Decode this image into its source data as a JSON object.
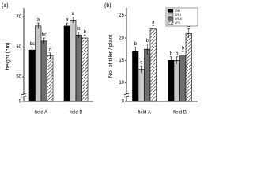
{
  "chart_data": [
    {
      "type": "bar",
      "title": "(a)",
      "ylabel": "height (cm)",
      "categories": [
        "field A",
        "field B"
      ],
      "ylim": [
        45,
        72
      ],
      "yticks": [
        50,
        60,
        70
      ],
      "yticks_below_break": [
        0
      ],
      "series": [
        {
          "color": "#000000",
          "values": [
            59,
            67
          ],
          "errors": [
            1,
            1
          ],
          "letters": [
            "bc",
            "a"
          ]
        },
        {
          "color": "#c8c8c8",
          "values": [
            67,
            69
          ],
          "errors": [
            1,
            1
          ],
          "letters": [
            "a",
            "a"
          ]
        },
        {
          "color": "#6e6e6e",
          "values": [
            62,
            64
          ],
          "errors": [
            1,
            1
          ],
          "letters": [
            "bc",
            "b"
          ]
        },
        {
          "color": "#ffffff",
          "hatch": true,
          "values": [
            57,
            63
          ],
          "errors": [
            1,
            1
          ],
          "letters": [
            "c",
            "b"
          ]
        }
      ]
    },
    {
      "type": "bar",
      "title": "(b)",
      "ylabel": "No. of tiller / plant",
      "categories": [
        "field A",
        "field B"
      ],
      "ylim": [
        8,
        26
      ],
      "yticks": [
        10,
        15,
        20,
        25
      ],
      "yticks_below_break": [
        0
      ],
      "legend": "upper right",
      "series": [
        {
          "name": "IRM",
          "color": "#000000",
          "values": [
            17,
            15
          ],
          "errors": [
            1,
            0.8
          ],
          "letters": [
            "b",
            "b"
          ]
        },
        {
          "name": "I-RLI",
          "color": "#c8c8c8",
          "values": [
            13,
            15
          ],
          "errors": [
            0.8,
            0.8
          ],
          "letters": [
            "c",
            "b"
          ]
        },
        {
          "name": "I-RLII",
          "color": "#6e6e6e",
          "values": [
            17.5,
            16
          ],
          "errors": [
            1.2,
            1
          ],
          "letters": [
            "b",
            "b"
          ]
        },
        {
          "name": "LFS",
          "color": "#ffffff",
          "hatch": true,
          "values": [
            22,
            21
          ],
          "errors": [
            0.8,
            1
          ],
          "letters": [
            "a",
            "a"
          ]
        }
      ]
    }
  ]
}
